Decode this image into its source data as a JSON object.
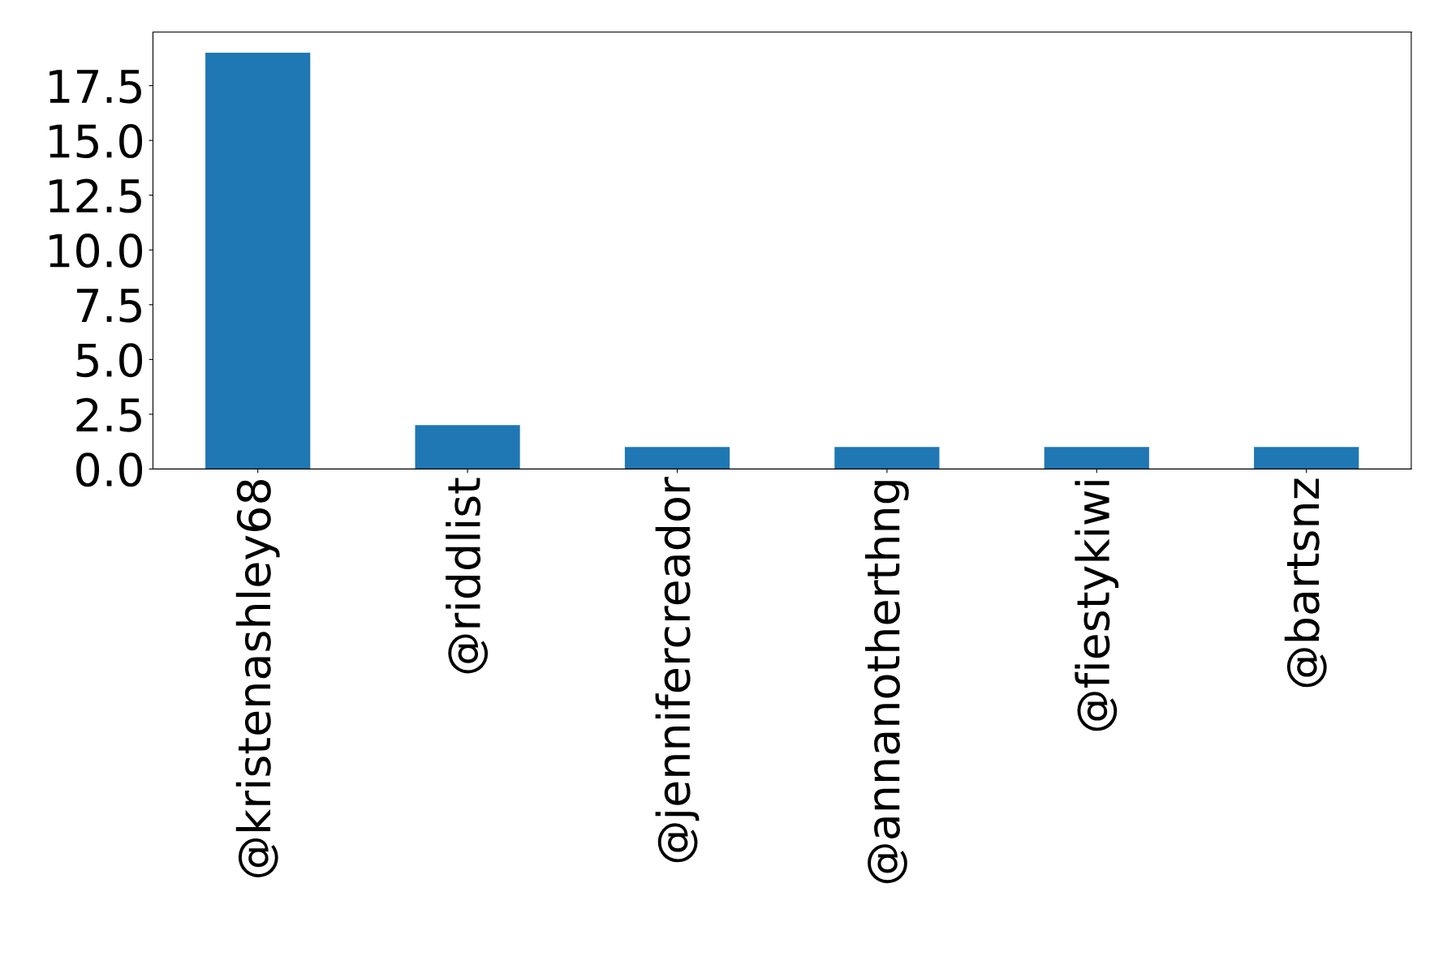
{
  "chart_data": {
    "type": "bar",
    "categories": [
      "@kristenashley68",
      "@riddlist",
      "@jennifercreador",
      "@annanotherthng",
      "@fiestykiwi",
      "@bartsnz"
    ],
    "values": [
      19,
      2,
      1,
      1,
      1,
      1
    ],
    "color": "#1f77b4",
    "ylim": [
      0,
      19.95
    ],
    "yticks": [
      {
        "value": 0,
        "label": "0.0"
      },
      {
        "value": 2.5,
        "label": "2.5"
      },
      {
        "value": 5,
        "label": "5.0"
      },
      {
        "value": 7.5,
        "label": "7.5"
      },
      {
        "value": 10,
        "label": "10.0"
      },
      {
        "value": 12.5,
        "label": "12.5"
      },
      {
        "value": 15,
        "label": "15.0"
      },
      {
        "value": 17.5,
        "label": "17.5"
      }
    ],
    "grid": false,
    "legend": false
  }
}
